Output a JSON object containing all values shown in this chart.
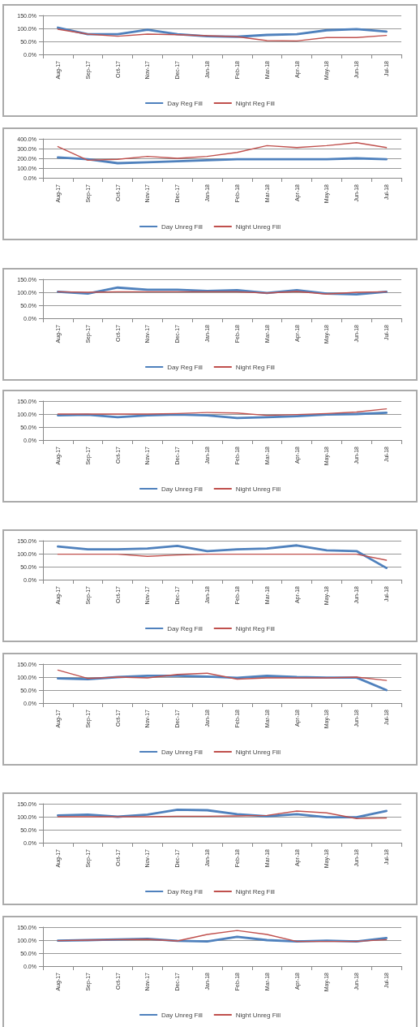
{
  "chart_data": [
    {
      "type": "line",
      "categories": [
        "Aug-17",
        "Sep-17",
        "Oct-17",
        "Nov-17",
        "Dec-17",
        "Jan-18",
        "Feb-18",
        "Mar-18",
        "Apr-18",
        "May-18",
        "Jun-18",
        "Jul-18"
      ],
      "series": [
        {
          "name": "Day Reg Fill",
          "color": "#4f81bd",
          "values": [
            103,
            78,
            78,
            95,
            78,
            70,
            68,
            75,
            78,
            93,
            97,
            88
          ]
        },
        {
          "name": "Night Reg Fill",
          "color": "#c0504d",
          "values": [
            97,
            78,
            70,
            78,
            76,
            72,
            68,
            53,
            52,
            65,
            65,
            73
          ]
        }
      ],
      "ylim": [
        0,
        150
      ],
      "yticks": [
        {
          "value": 0,
          "label": "0.0%"
        },
        {
          "value": 50,
          "label": "50.0%"
        },
        {
          "value": 100,
          "label": "100.0%"
        },
        {
          "value": 150,
          "label": "150.0%"
        }
      ],
      "grid": "y",
      "legend": "bottom",
      "marker": "none"
    },
    {
      "type": "line",
      "categories": [
        "Aug-17",
        "Sep-17",
        "Oct-17",
        "Nov-17",
        "Dec-17",
        "Jan-18",
        "Feb-18",
        "Mar-18",
        "Apr-18",
        "May-18",
        "Jun-18",
        "Jul-18"
      ],
      "series": [
        {
          "name": "Day Unreg Fill",
          "color": "#4f81bd",
          "values": [
            210,
            190,
            150,
            160,
            170,
            180,
            190,
            190,
            190,
            190,
            200,
            190
          ]
        },
        {
          "name": "Night Unreg Fill",
          "color": "#c0504d",
          "values": [
            320,
            180,
            190,
            220,
            200,
            220,
            260,
            330,
            310,
            330,
            360,
            310
          ]
        }
      ],
      "ylim": [
        0,
        400
      ],
      "yticks": [
        {
          "value": 0,
          "label": "0.0%"
        },
        {
          "value": 100,
          "label": "100.0%"
        },
        {
          "value": 200,
          "label": "200.0%"
        },
        {
          "value": 300,
          "label": "300.0%"
        },
        {
          "value": 400,
          "label": "400.0%"
        }
      ],
      "grid": "y",
      "legend": "bottom",
      "marker": "none"
    },
    {
      "type": "line",
      "categories": [
        "Aug-17",
        "Sep-17",
        "Oct-17",
        "Nov-17",
        "Dec-17",
        "Jan-18",
        "Feb-18",
        "Mar-18",
        "Apr-18",
        "May-18",
        "Jun-18",
        "Jul-18"
      ],
      "series": [
        {
          "name": "Day Reg Fill",
          "color": "#4f81bd",
          "values": [
            102,
            95,
            118,
            110,
            110,
            105,
            108,
            97,
            108,
            95,
            92,
            102
          ]
        },
        {
          "name": "Night Reg Fill",
          "color": "#c0504d",
          "values": [
            102,
            100,
            102,
            102,
            102,
            102,
            102,
            97,
            103,
            93,
            100,
            102
          ]
        }
      ],
      "ylim": [
        0,
        150
      ],
      "yticks": [
        {
          "value": 0,
          "label": "0.0%"
        },
        {
          "value": 50,
          "label": "50.0%"
        },
        {
          "value": 100,
          "label": "100.0%"
        },
        {
          "value": 150,
          "label": "150.0%"
        }
      ],
      "grid": "y",
      "legend": "bottom",
      "marker": "none"
    },
    {
      "type": "line",
      "categories": [
        "Aug-17",
        "Sep-17",
        "Oct-17",
        "Nov-17",
        "Dec-17",
        "Jan-18",
        "Feb-18",
        "Mar-18",
        "Apr-18",
        "May-18",
        "Jun-18",
        "Jul-18"
      ],
      "series": [
        {
          "name": "Day Unreg Fill",
          "color": "#4f81bd",
          "values": [
            95,
            97,
            88,
            95,
            98,
            95,
            85,
            88,
            92,
            98,
            100,
            105
          ]
        },
        {
          "name": "Night Unreg Fill",
          "color": "#c0504d",
          "values": [
            100,
            100,
            100,
            100,
            102,
            106,
            104,
            95,
            98,
            102,
            108,
            120
          ]
        }
      ],
      "ylim": [
        0,
        150
      ],
      "yticks": [
        {
          "value": 0,
          "label": "0.0%"
        },
        {
          "value": 50,
          "label": "50.0%"
        },
        {
          "value": 100,
          "label": "100.0%"
        },
        {
          "value": 150,
          "label": "150.0%"
        }
      ],
      "grid": "y",
      "legend": "bottom",
      "marker": "none"
    },
    {
      "type": "line",
      "categories": [
        "Aug-17",
        "Sep-17",
        "Oct-17",
        "Nov-17",
        "Dec-17",
        "Jan-18",
        "Feb-18",
        "Mar-18",
        "Apr-18",
        "May-18",
        "Jun-18",
        "Jul-18"
      ],
      "series": [
        {
          "name": "Day Reg Fill",
          "color": "#4f81bd",
          "values": [
            128,
            117,
            117,
            120,
            130,
            110,
            117,
            120,
            132,
            113,
            110,
            45
          ]
        },
        {
          "name": "Night Reg Fill",
          "color": "#c0504d",
          "values": [
            98,
            98,
            98,
            90,
            95,
            98,
            98,
            98,
            98,
            98,
            98,
            75
          ]
        }
      ],
      "ylim": [
        0,
        150
      ],
      "yticks": [
        {
          "value": 0,
          "label": "0.0%"
        },
        {
          "value": 50,
          "label": "50.0%"
        },
        {
          "value": 100,
          "label": "100.0%"
        },
        {
          "value": 150,
          "label": "150.0%"
        }
      ],
      "grid": "y",
      "legend": "bottom",
      "marker": "none"
    },
    {
      "type": "line",
      "categories": [
        "Aug-17",
        "Sep-17",
        "Oct-17",
        "Nov-17",
        "Dec-17",
        "Jan-18",
        "Feb-18",
        "Mar-18",
        "Apr-18",
        "May-18",
        "Jun-18",
        "Jul-18"
      ],
      "series": [
        {
          "name": "Day Unreg Fill",
          "color": "#4f81bd",
          "values": [
            95,
            92,
            100,
            105,
            105,
            102,
            97,
            105,
            100,
            98,
            98,
            50
          ]
        },
        {
          "name": "Night Unreg Fill",
          "color": "#c0504d",
          "values": [
            127,
            95,
            100,
            97,
            110,
            115,
            92,
            97,
            97,
            97,
            100,
            87
          ]
        }
      ],
      "ylim": [
        0,
        150
      ],
      "yticks": [
        {
          "value": 0,
          "label": "0.0%"
        },
        {
          "value": 50,
          "label": "50.0%"
        },
        {
          "value": 100,
          "label": "100.0%"
        },
        {
          "value": 150,
          "label": "150.0%"
        }
      ],
      "grid": "y",
      "legend": "bottom",
      "marker": "none"
    },
    {
      "type": "line",
      "categories": [
        "Aug-17",
        "Sep-17",
        "Oct-17",
        "Nov-17",
        "Dec-17",
        "Jan-18",
        "Feb-18",
        "Mar-18",
        "Apr-18",
        "May-18",
        "Jun-18",
        "Jul-18"
      ],
      "series": [
        {
          "name": "Day Reg Fill",
          "color": "#4f81bd",
          "values": [
            105,
            108,
            100,
            108,
            127,
            125,
            110,
            102,
            110,
            98,
            98,
            122
          ]
        },
        {
          "name": "Night Reg Fill",
          "color": "#c0504d",
          "values": [
            100,
            100,
            100,
            100,
            102,
            102,
            103,
            105,
            122,
            115,
            93,
            95
          ]
        }
      ],
      "ylim": [
        0,
        150
      ],
      "yticks": [
        {
          "value": 0,
          "label": "0.0%"
        },
        {
          "value": 50,
          "label": "50.0%"
        },
        {
          "value": 100,
          "label": "100.0%"
        },
        {
          "value": 150,
          "label": "150.0%"
        }
      ],
      "grid": "y",
      "legend": "bottom",
      "marker": "none"
    },
    {
      "type": "line",
      "categories": [
        "Aug-17",
        "Sep-17",
        "Oct-17",
        "Nov-17",
        "Dec-17",
        "Jan-18",
        "Feb-18",
        "Mar-18",
        "Apr-18",
        "May-18",
        "Jun-18",
        "Jul-18"
      ],
      "series": [
        {
          "name": "Day Unreg Fill",
          "color": "#4f81bd",
          "values": [
            98,
            100,
            103,
            105,
            97,
            95,
            113,
            100,
            95,
            98,
            95,
            108
          ]
        },
        {
          "name": "Night Unreg Fill",
          "color": "#c0504d",
          "values": [
            98,
            100,
            102,
            103,
            97,
            122,
            137,
            122,
            95,
            95,
            95,
            102
          ]
        }
      ],
      "ylim": [
        0,
        150
      ],
      "yticks": [
        {
          "value": 0,
          "label": "0.0%"
        },
        {
          "value": 50,
          "label": "50.0%"
        },
        {
          "value": 100,
          "label": "100.0%"
        },
        {
          "value": 150,
          "label": "150.0%"
        }
      ],
      "grid": "y",
      "legend": "bottom",
      "marker": "none"
    }
  ]
}
